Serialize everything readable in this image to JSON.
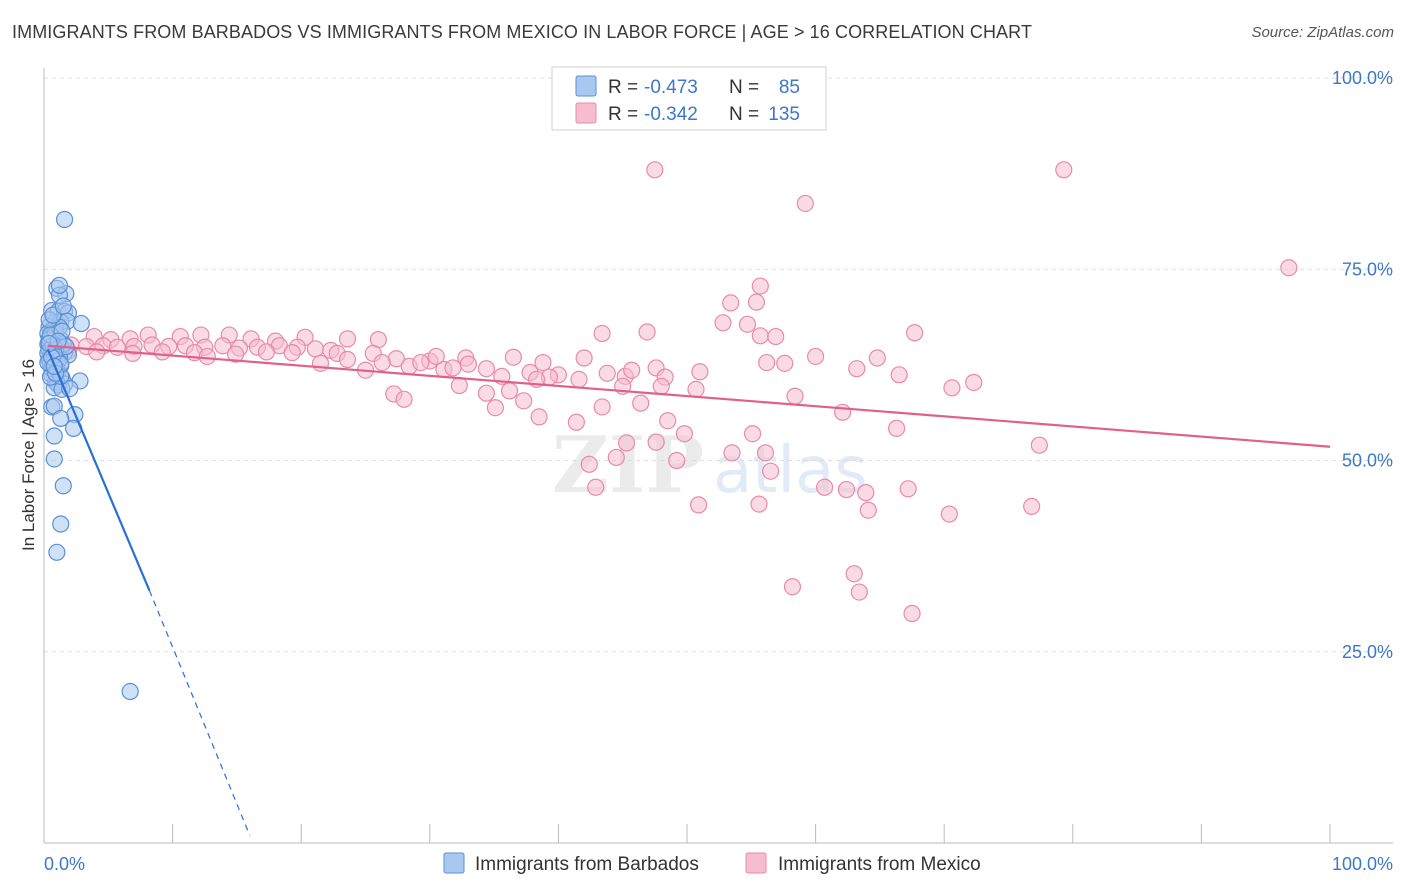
{
  "title": "IMMIGRANTS FROM BARBADOS VS IMMIGRANTS FROM MEXICO IN LABOR FORCE | AGE > 16 CORRELATION CHART",
  "source": "Source: ZipAtlas.com",
  "watermark": "ZIPatlas",
  "colors": {
    "barbados_fill": "#a8c8f0",
    "barbados_stroke": "#5b8fd6",
    "barbados_line": "#2a6fd4",
    "mexico_fill": "#f6bcd0",
    "mexico_stroke": "#e88aab",
    "mexico_line": "#e0608c",
    "axis_label": "#3c78c8",
    "grid": "#dddddd"
  },
  "legend": {
    "r_label": "R =",
    "n_label": "N =",
    "barbados": {
      "r": "-0.473",
      "n": "85"
    },
    "mexico": {
      "r": "-0.342",
      "n": "135"
    }
  },
  "bottom_legend": {
    "barbados": "Immigrants from Barbados",
    "mexico": "Immigrants from Mexico"
  },
  "chart_data": {
    "type": "scatter",
    "title": "IMMIGRANTS FROM BARBADOS VS IMMIGRANTS FROM MEXICO IN LABOR FORCE | AGE > 16 CORRELATION CHART",
    "xlabel": "",
    "ylabel": "In Labor Force | Age > 16",
    "xlim": [
      0,
      100
    ],
    "ylim": [
      0,
      100
    ],
    "x_tick_labels": [
      "0.0%",
      "100.0%"
    ],
    "y_ticks": [
      25,
      50,
      75,
      100
    ],
    "y_tick_labels": [
      "25.0%",
      "50.0%",
      "75.0%",
      "100.0%"
    ],
    "series": [
      {
        "name": "Immigrants from Barbados",
        "r": -0.473,
        "n": 85,
        "trend": {
          "x0": 0.3,
          "y0": 64.5,
          "x1": 8.2,
          "y1": 33.0,
          "dash_to_x": 16.0,
          "dash_to_y": 1.0
        },
        "points": [
          [
            1.6,
            81.5
          ],
          [
            1.0,
            72.5
          ],
          [
            1.7,
            71.8
          ],
          [
            1.2,
            71.6
          ],
          [
            0.6,
            69.6
          ],
          [
            1.1,
            69.5
          ],
          [
            1.6,
            69.5
          ],
          [
            1.9,
            69.3
          ],
          [
            0.8,
            68.0
          ],
          [
            1.3,
            68.1
          ],
          [
            1.8,
            68.2
          ],
          [
            2.9,
            67.9
          ],
          [
            0.4,
            67.5
          ],
          [
            0.9,
            67.3
          ],
          [
            0.6,
            67.0
          ],
          [
            0.3,
            66.6
          ],
          [
            0.7,
            66.2
          ],
          [
            1.2,
            66.0
          ],
          [
            0.5,
            65.7
          ],
          [
            0.9,
            65.4
          ],
          [
            0.3,
            65.2
          ],
          [
            0.6,
            64.9
          ],
          [
            1.0,
            64.8
          ],
          [
            1.4,
            64.6
          ],
          [
            0.4,
            64.4
          ],
          [
            0.8,
            64.2
          ],
          [
            1.6,
            64.1
          ],
          [
            1.9,
            63.8
          ],
          [
            0.5,
            63.7
          ],
          [
            1.2,
            63.6
          ],
          [
            0.7,
            63.4
          ],
          [
            0.4,
            63.2
          ],
          [
            1.0,
            63.1
          ],
          [
            0.8,
            62.9
          ],
          [
            0.5,
            62.6
          ],
          [
            1.3,
            62.4
          ],
          [
            0.7,
            62.1
          ],
          [
            1.1,
            61.6
          ],
          [
            0.6,
            61.2
          ],
          [
            1.4,
            60.8
          ],
          [
            2.8,
            60.4
          ],
          [
            0.9,
            60.3
          ],
          [
            1.6,
            60.0
          ],
          [
            1.1,
            59.9
          ],
          [
            0.8,
            59.5
          ],
          [
            1.4,
            59.3
          ],
          [
            2.0,
            59.4
          ],
          [
            0.6,
            57.0
          ],
          [
            0.8,
            57.1
          ],
          [
            2.4,
            56.0
          ],
          [
            1.3,
            55.5
          ],
          [
            2.3,
            54.2
          ],
          [
            0.8,
            53.2
          ],
          [
            0.8,
            50.2
          ],
          [
            1.5,
            46.7
          ],
          [
            1.3,
            41.7
          ],
          [
            1.0,
            38.0
          ],
          [
            6.7,
            19.8
          ],
          [
            0.4,
            65.9
          ],
          [
            0.9,
            66.7
          ],
          [
            1.5,
            65.2
          ],
          [
            0.3,
            64.0
          ],
          [
            1.1,
            63.0
          ],
          [
            0.6,
            62.0
          ],
          [
            1.0,
            61.9
          ],
          [
            0.5,
            60.9
          ],
          [
            1.3,
            61.0
          ],
          [
            0.7,
            65.0
          ],
          [
            1.2,
            67.4
          ],
          [
            0.4,
            68.4
          ],
          [
            0.9,
            64.5
          ],
          [
            1.7,
            64.9
          ],
          [
            0.5,
            66.4
          ],
          [
            1.4,
            66.9
          ],
          [
            0.8,
            63.9
          ],
          [
            0.3,
            62.8
          ],
          [
            1.1,
            65.6
          ],
          [
            0.6,
            63.5
          ],
          [
            1.3,
            62.6
          ],
          [
            0.9,
            61.4
          ],
          [
            0.7,
            69.0
          ],
          [
            1.5,
            70.2
          ],
          [
            1.2,
            72.9
          ],
          [
            0.4,
            65.3
          ],
          [
            0.8,
            62.3
          ]
        ]
      },
      {
        "name": "Immigrants from Mexico",
        "r": -0.342,
        "n": 135,
        "trend": {
          "x0": 0.3,
          "y0": 65.0,
          "x1": 100.0,
          "y1": 51.8
        },
        "points": [
          [
            47.5,
            88.0
          ],
          [
            79.3,
            88.0
          ],
          [
            59.2,
            83.6
          ],
          [
            96.8,
            75.2
          ],
          [
            55.4,
            70.7
          ],
          [
            53.4,
            70.6
          ],
          [
            55.7,
            72.8
          ],
          [
            52.8,
            68.0
          ],
          [
            54.7,
            67.8
          ],
          [
            46.9,
            66.8
          ],
          [
            43.4,
            66.6
          ],
          [
            67.7,
            66.7
          ],
          [
            55.7,
            66.3
          ],
          [
            56.9,
            66.2
          ],
          [
            6.7,
            65.9
          ],
          [
            8.1,
            66.4
          ],
          [
            5.2,
            65.8
          ],
          [
            3.9,
            66.2
          ],
          [
            10.6,
            66.2
          ],
          [
            12.2,
            66.4
          ],
          [
            14.4,
            66.4
          ],
          [
            16.1,
            65.9
          ],
          [
            18.0,
            65.6
          ],
          [
            20.3,
            66.1
          ],
          [
            23.6,
            65.9
          ],
          [
            26.0,
            65.8
          ],
          [
            2.1,
            65.1
          ],
          [
            3.3,
            64.9
          ],
          [
            4.6,
            65.0
          ],
          [
            5.7,
            64.8
          ],
          [
            7.0,
            64.9
          ],
          [
            8.4,
            65.1
          ],
          [
            9.7,
            64.9
          ],
          [
            11.0,
            65.0
          ],
          [
            12.5,
            64.8
          ],
          [
            13.9,
            65.0
          ],
          [
            15.2,
            64.7
          ],
          [
            16.6,
            64.8
          ],
          [
            18.3,
            65.0
          ],
          [
            19.7,
            64.8
          ],
          [
            21.1,
            64.6
          ],
          [
            22.3,
            64.4
          ],
          [
            1.9,
            64.3
          ],
          [
            4.1,
            64.2
          ],
          [
            6.9,
            64.0
          ],
          [
            9.2,
            64.2
          ],
          [
            11.7,
            64.1
          ],
          [
            12.7,
            63.6
          ],
          [
            14.9,
            63.9
          ],
          [
            17.3,
            64.2
          ],
          [
            19.3,
            64.1
          ],
          [
            22.8,
            64.0
          ],
          [
            25.6,
            64.0
          ],
          [
            27.4,
            63.3
          ],
          [
            30.0,
            63.0
          ],
          [
            32.8,
            63.4
          ],
          [
            36.5,
            63.5
          ],
          [
            38.8,
            62.8
          ],
          [
            42.0,
            63.4
          ],
          [
            34.4,
            62.0
          ],
          [
            28.4,
            62.3
          ],
          [
            25.0,
            61.8
          ],
          [
            31.1,
            61.9
          ],
          [
            37.8,
            61.5
          ],
          [
            40.0,
            61.2
          ],
          [
            43.8,
            61.4
          ],
          [
            45.2,
            61.0
          ],
          [
            35.6,
            61.0
          ],
          [
            29.3,
            62.8
          ],
          [
            33.0,
            62.6
          ],
          [
            26.3,
            62.8
          ],
          [
            23.6,
            63.2
          ],
          [
            39.3,
            60.9
          ],
          [
            41.6,
            60.6
          ],
          [
            32.3,
            59.8
          ],
          [
            34.4,
            58.8
          ],
          [
            27.2,
            58.7
          ],
          [
            28.0,
            58.0
          ],
          [
            36.2,
            59.1
          ],
          [
            38.3,
            60.6
          ],
          [
            45.7,
            61.8
          ],
          [
            47.6,
            62.1
          ],
          [
            48.3,
            60.9
          ],
          [
            51.0,
            61.6
          ],
          [
            58.4,
            58.4
          ],
          [
            63.2,
            62.0
          ],
          [
            56.2,
            62.8
          ],
          [
            50.7,
            59.3
          ],
          [
            46.4,
            57.5
          ],
          [
            43.4,
            57.0
          ],
          [
            37.3,
            57.8
          ],
          [
            35.1,
            56.9
          ],
          [
            38.5,
            55.7
          ],
          [
            41.4,
            55.0
          ],
          [
            48.5,
            55.2
          ],
          [
            55.1,
            53.5
          ],
          [
            53.5,
            51.0
          ],
          [
            42.4,
            49.5
          ],
          [
            44.5,
            50.4
          ],
          [
            49.2,
            50.0
          ],
          [
            45.3,
            52.3
          ],
          [
            47.6,
            52.4
          ],
          [
            49.8,
            53.5
          ],
          [
            62.1,
            56.3
          ],
          [
            70.6,
            59.5
          ],
          [
            66.5,
            61.2
          ],
          [
            72.3,
            60.2
          ],
          [
            77.4,
            52.0
          ],
          [
            56.5,
            48.6
          ],
          [
            60.7,
            46.5
          ],
          [
            63.9,
            45.8
          ],
          [
            67.2,
            46.3
          ],
          [
            42.9,
            46.5
          ],
          [
            50.9,
            44.2
          ],
          [
            55.6,
            44.3
          ],
          [
            64.1,
            43.5
          ],
          [
            70.4,
            43.0
          ],
          [
            76.8,
            44.0
          ],
          [
            58.2,
            33.5
          ],
          [
            63.0,
            35.2
          ],
          [
            63.4,
            32.8
          ],
          [
            67.5,
            30.0
          ],
          [
            57.6,
            62.7
          ],
          [
            64.8,
            63.4
          ],
          [
            60.0,
            63.6
          ],
          [
            45.0,
            59.7
          ],
          [
            48.0,
            59.7
          ],
          [
            56.1,
            51.0
          ],
          [
            62.4,
            46.2
          ],
          [
            30.5,
            63.6
          ],
          [
            31.8,
            62.1
          ],
          [
            21.5,
            62.7
          ],
          [
            66.3,
            54.2
          ]
        ]
      }
    ]
  }
}
